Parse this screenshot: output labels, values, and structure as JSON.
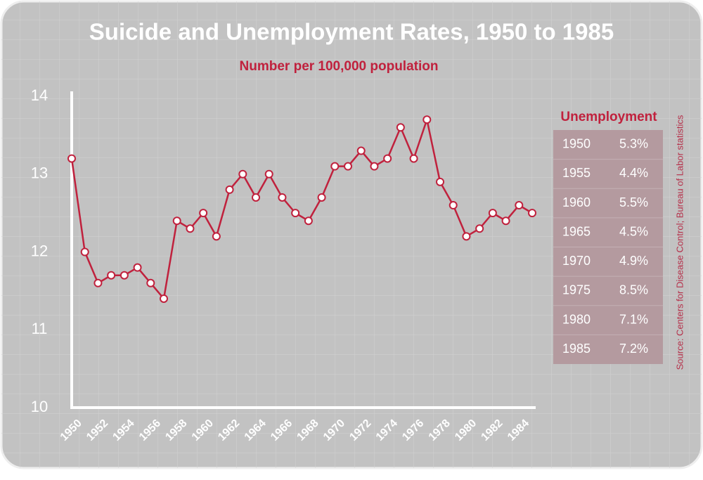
{
  "chart_data": {
    "type": "line",
    "title": "Suicide and Unemployment Rates, 1950 to 1985",
    "subtitle": "Number per 100,000 population",
    "x": [
      1950,
      1951,
      1952,
      1953,
      1954,
      1955,
      1956,
      1957,
      1958,
      1959,
      1960,
      1961,
      1962,
      1963,
      1964,
      1965,
      1966,
      1967,
      1968,
      1969,
      1970,
      1971,
      1972,
      1973,
      1974,
      1975,
      1976,
      1977,
      1978,
      1979,
      1980,
      1981,
      1982,
      1983,
      1984,
      1985
    ],
    "values": [
      13.2,
      12.0,
      11.6,
      11.7,
      11.7,
      11.8,
      11.6,
      11.4,
      12.4,
      12.3,
      12.5,
      12.2,
      12.8,
      13.0,
      12.7,
      13.0,
      12.7,
      12.5,
      12.4,
      12.7,
      13.1,
      13.1,
      13.3,
      13.1,
      13.2,
      13.6,
      13.2,
      13.7,
      12.9,
      12.6,
      12.2,
      12.3,
      12.5,
      12.4,
      12.6,
      12.5
    ],
    "color": "#c0213d",
    "xlim": [
      1950,
      1985
    ],
    "xticks": [
      1950,
      1952,
      1954,
      1956,
      1958,
      1960,
      1962,
      1964,
      1966,
      1968,
      1970,
      1972,
      1974,
      1976,
      1978,
      1980,
      1982,
      1984
    ],
    "ylim": [
      10,
      14
    ],
    "yticks": [
      10,
      11,
      12,
      13,
      14
    ]
  },
  "table": {
    "title": "Unemployment",
    "rows": [
      [
        "1950",
        "5.3%"
      ],
      [
        "1955",
        "4.4%"
      ],
      [
        "1960",
        "5.5%"
      ],
      [
        "1965",
        "4.5%"
      ],
      [
        "1970",
        "4.9%"
      ],
      [
        "1975",
        "8.5%"
      ],
      [
        "1980",
        "7.1%"
      ],
      [
        "1985",
        "7.2%"
      ]
    ]
  },
  "source": "Source: Centers for Disease Control; Bureau of Labor statistics"
}
